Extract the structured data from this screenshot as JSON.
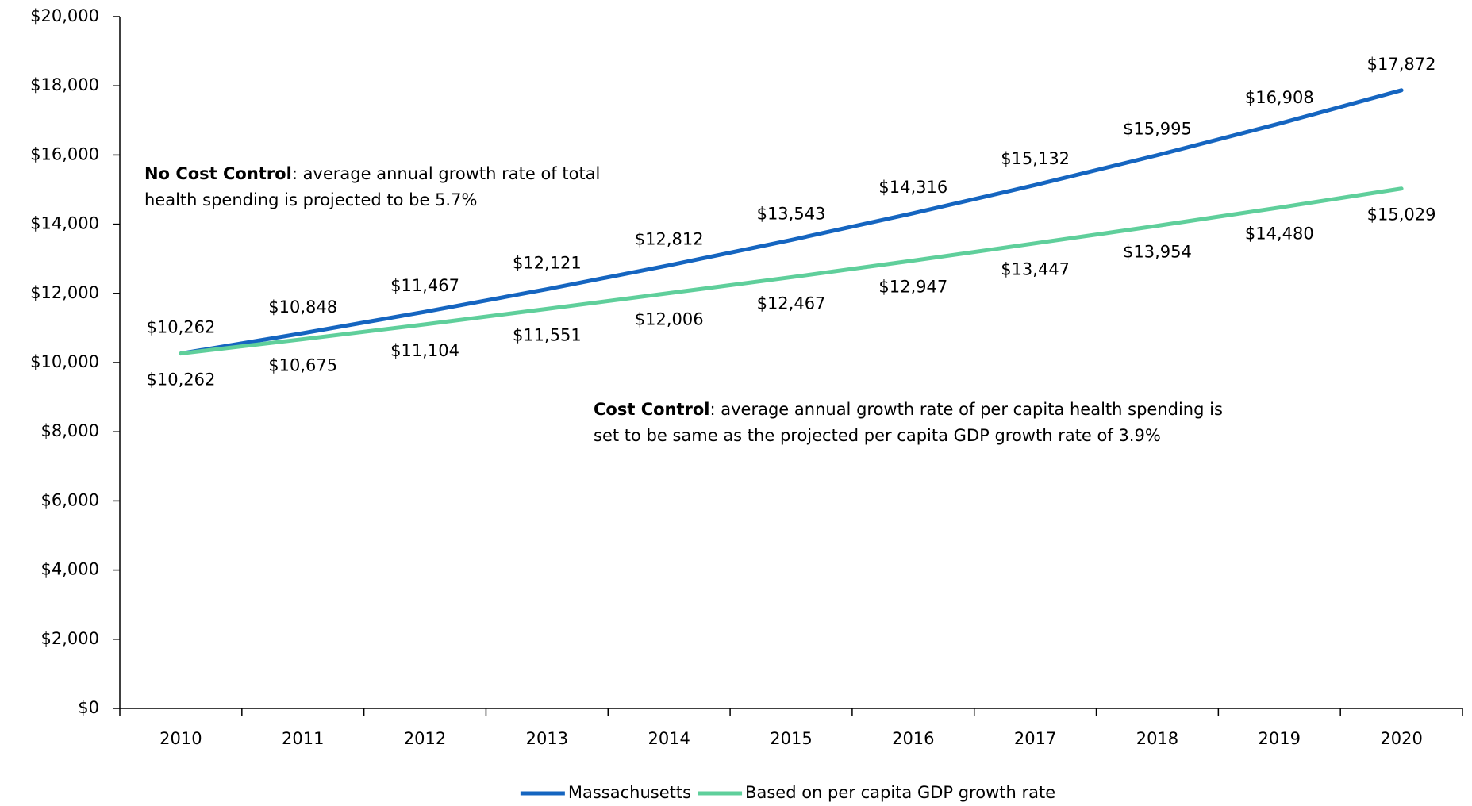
{
  "chart_data": {
    "type": "line",
    "categories": [
      "2010",
      "2011",
      "2012",
      "2013",
      "2014",
      "2015",
      "2016",
      "2017",
      "2018",
      "2019",
      "2020"
    ],
    "series": [
      {
        "name": "Massachusetts",
        "color": "#1565c0",
        "label_side": "above",
        "values": [
          10262,
          10848,
          11467,
          12121,
          12812,
          13543,
          14316,
          15132,
          15995,
          16908,
          17872
        ],
        "value_labels": [
          "$10,262",
          "$10,848",
          "$11,467",
          "$12,121",
          "$12,812",
          "$13,543",
          "$14,316",
          "$15,132",
          "$15,995",
          "$16,908",
          "$17,872"
        ]
      },
      {
        "name": "Based on per capita GDP growth rate",
        "color": "#5fcf9b",
        "label_side": "below",
        "values": [
          10262,
          10675,
          11104,
          11551,
          12006,
          12467,
          12947,
          13447,
          13954,
          14480,
          15029
        ],
        "value_labels": [
          "$10,262",
          "$10,675",
          "$11,104",
          "$11,551",
          "$12,006",
          "$12,467",
          "$12,947",
          "$13,447",
          "$13,954",
          "$14,480",
          "$15,029"
        ]
      }
    ],
    "ylim": [
      0,
      20000
    ],
    "yticks": [
      {
        "value": 0,
        "label": "$0"
      },
      {
        "value": 2000,
        "label": "$2,000"
      },
      {
        "value": 4000,
        "label": "$4,000"
      },
      {
        "value": 6000,
        "label": "$6,000"
      },
      {
        "value": 8000,
        "label": "$8,000"
      },
      {
        "value": 10000,
        "label": "$10,000"
      },
      {
        "value": 12000,
        "label": "$12,000"
      },
      {
        "value": 14000,
        "label": "$14,000"
      },
      {
        "value": 16000,
        "label": "$16,000"
      },
      {
        "value": 18000,
        "label": "$18,000"
      },
      {
        "value": 20000,
        "label": "$20,000"
      }
    ],
    "grid": false,
    "legend": "bottom",
    "annotations": [
      {
        "bold": "No Cost Control",
        "lines": [
          ": average annual growth rate of total",
          "health spending is projected to be 5.7%"
        ]
      },
      {
        "bold": "Cost Control",
        "lines": [
          ": average annual growth rate of per capita health spending is",
          "set to be same as the projected per capita GDP growth rate of 3.9%"
        ]
      }
    ]
  }
}
